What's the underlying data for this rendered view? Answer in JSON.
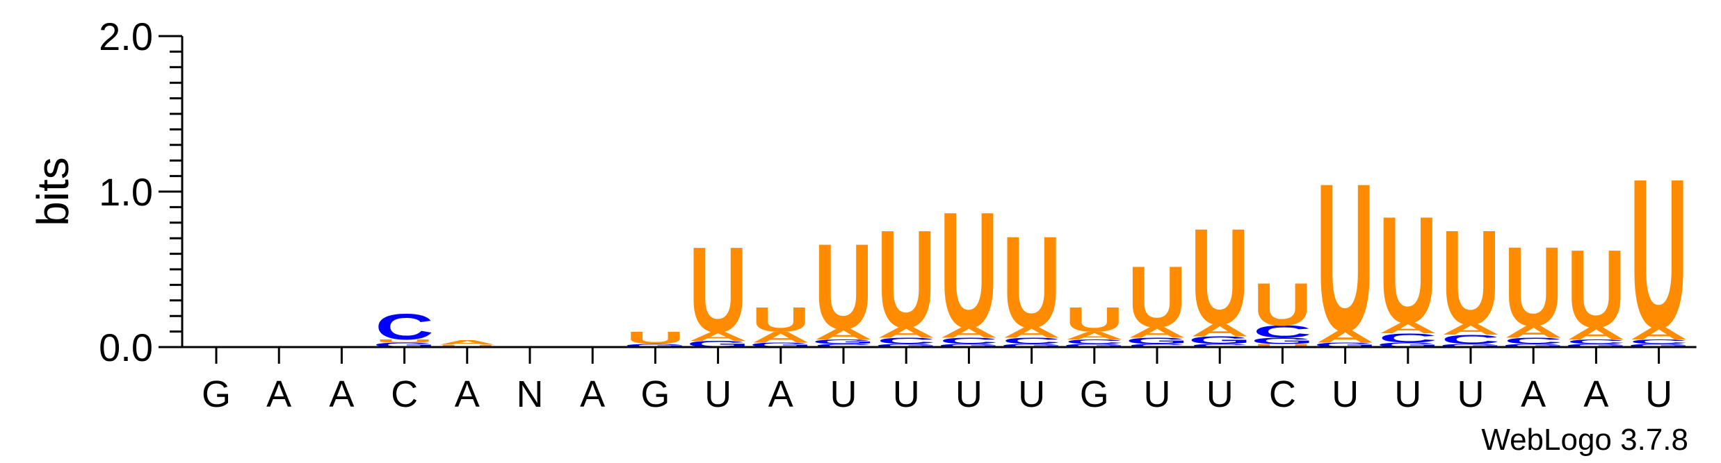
{
  "chart_data": {
    "type": "sequence-logo",
    "ylabel": "bits",
    "ylim": [
      0,
      2.0
    ],
    "yticks": [
      "0.0",
      "1.0",
      "2.0"
    ],
    "positions": [
      "G",
      "A",
      "A",
      "C",
      "A",
      "N",
      "A",
      "G",
      "U",
      "A",
      "U",
      "U",
      "U",
      "U",
      "G",
      "U",
      "U",
      "C",
      "U",
      "U",
      "U",
      "A",
      "A",
      "U"
    ],
    "colors": {
      "A": "#ff8c00",
      "U": "#ff8c00",
      "C": "#0000ff",
      "G": "#0000ff"
    },
    "stacks": [
      [],
      [],
      [],
      [
        {
          "l": "G",
          "h": 0.03
        },
        {
          "l": "U",
          "h": 0.02
        },
        {
          "l": "C",
          "h": 0.17
        }
      ],
      [
        {
          "l": "U",
          "h": 0.015
        },
        {
          "l": "A",
          "h": 0.03
        }
      ],
      [],
      [],
      [
        {
          "l": "G",
          "h": 0.02
        },
        {
          "l": "U",
          "h": 0.08
        }
      ],
      [
        {
          "l": "G",
          "h": 0.04
        },
        {
          "l": "A",
          "h": 0.06
        },
        {
          "l": "U",
          "h": 0.56
        }
      ],
      [
        {
          "l": "G",
          "h": 0.03
        },
        {
          "l": "A",
          "h": 0.07
        },
        {
          "l": "U",
          "h": 0.16
        }
      ],
      [
        {
          "l": "C",
          "h": 0.02
        },
        {
          "l": "G",
          "h": 0.03
        },
        {
          "l": "A",
          "h": 0.07
        },
        {
          "l": "U",
          "h": 0.56
        }
      ],
      [
        {
          "l": "G",
          "h": 0.02
        },
        {
          "l": "C",
          "h": 0.04
        },
        {
          "l": "A",
          "h": 0.07
        },
        {
          "l": "U",
          "h": 0.64
        }
      ],
      [
        {
          "l": "G",
          "h": 0.02
        },
        {
          "l": "C",
          "h": 0.04
        },
        {
          "l": "A",
          "h": 0.07
        },
        {
          "l": "U",
          "h": 0.76
        }
      ],
      [
        {
          "l": "G",
          "h": 0.02
        },
        {
          "l": "C",
          "h": 0.04
        },
        {
          "l": "A",
          "h": 0.07
        },
        {
          "l": "U",
          "h": 0.6
        }
      ],
      [
        {
          "l": "G",
          "h": 0.02
        },
        {
          "l": "C",
          "h": 0.03
        },
        {
          "l": "A",
          "h": 0.05
        },
        {
          "l": "U",
          "h": 0.16
        }
      ],
      [
        {
          "l": "C",
          "h": 0.02
        },
        {
          "l": "G",
          "h": 0.04
        },
        {
          "l": "A",
          "h": 0.07
        },
        {
          "l": "U",
          "h": 0.4
        }
      ],
      [
        {
          "l": "C",
          "h": 0.02
        },
        {
          "l": "G",
          "h": 0.05
        },
        {
          "l": "A",
          "h": 0.08
        },
        {
          "l": "U",
          "h": 0.63
        }
      ],
      [
        {
          "l": "U",
          "h": 0.02
        },
        {
          "l": "G",
          "h": 0.04
        },
        {
          "l": "C",
          "h": 0.08
        },
        {
          "l": "U2",
          "h": 0.28
        }
      ],
      [
        {
          "l": "G",
          "h": 0.03
        },
        {
          "l": "A",
          "h": 0.08
        },
        {
          "l": "U",
          "h": 0.97
        }
      ],
      [
        {
          "l": "G",
          "h": 0.03
        },
        {
          "l": "C",
          "h": 0.06
        },
        {
          "l": "A",
          "h": 0.07
        },
        {
          "l": "U",
          "h": 0.7
        }
      ],
      [
        {
          "l": "G",
          "h": 0.02
        },
        {
          "l": "C",
          "h": 0.06
        },
        {
          "l": "A",
          "h": 0.07
        },
        {
          "l": "U",
          "h": 0.62
        }
      ],
      [
        {
          "l": "G",
          "h": 0.02
        },
        {
          "l": "C",
          "h": 0.04
        },
        {
          "l": "A",
          "h": 0.08
        },
        {
          "l": "U",
          "h": 0.52
        }
      ],
      [
        {
          "l": "G",
          "h": 0.02
        },
        {
          "l": "C",
          "h": 0.03
        },
        {
          "l": "A",
          "h": 0.08
        },
        {
          "l": "U",
          "h": 0.51
        }
      ],
      [
        {
          "l": "G",
          "h": 0.02
        },
        {
          "l": "C",
          "h": 0.03
        },
        {
          "l": "A",
          "h": 0.08
        },
        {
          "l": "U",
          "h": 0.98
        }
      ]
    ]
  },
  "credit": "WebLogo 3.7.8"
}
